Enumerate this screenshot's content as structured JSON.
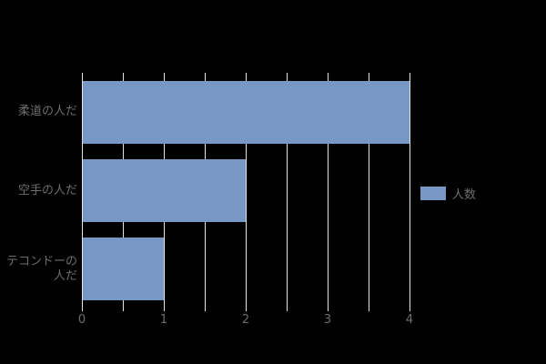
{
  "background_color": "#000000",
  "chart_data": {
    "type": "bar",
    "orientation": "horizontal",
    "title": "",
    "categories": [
      "柔道の人だ",
      "空手の人だ",
      "テコンドーの人だ"
    ],
    "category_display_lines": [
      [
        "柔道の人だ"
      ],
      [
        "空手の人だ"
      ],
      [
        "テコンドーの",
        "人だ"
      ]
    ],
    "series": [
      {
        "name": "人数",
        "values": [
          4,
          2,
          1
        ]
      }
    ],
    "xlabel": "",
    "ylabel": "",
    "xlim": [
      0,
      4
    ],
    "x_major_ticks": [
      0,
      1,
      2,
      3,
      4
    ],
    "x_tick_labels": [
      "0",
      "1",
      "2",
      "3",
      "4"
    ],
    "x_minor_ticks": [
      0.5,
      1.5,
      2.5,
      3.5
    ],
    "grid": "vertical",
    "legend": {
      "label": "人数",
      "position": "right-center"
    },
    "colors": {
      "bar": "#7797c5",
      "grid": "#e3e3e3",
      "text": "#6e6e6e",
      "background": "#000000"
    }
  }
}
